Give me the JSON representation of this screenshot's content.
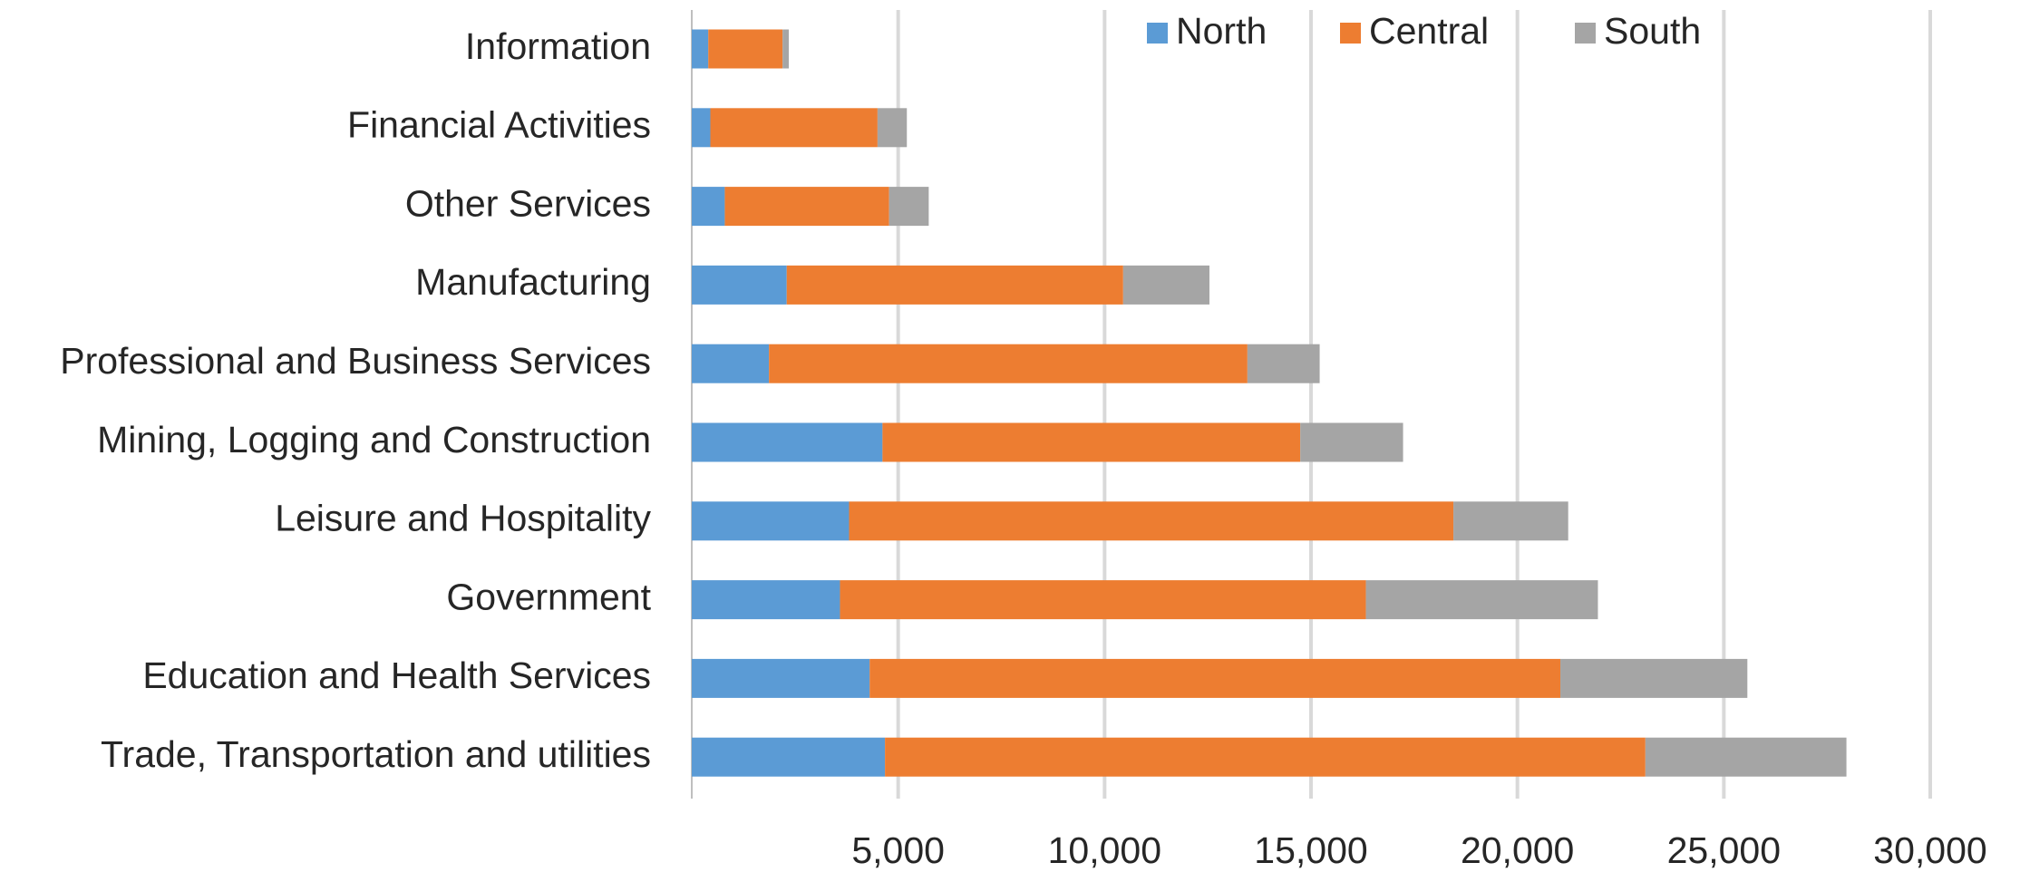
{
  "chart_data": {
    "type": "stacked-bar-horizontal",
    "categories": [
      "Information",
      "Financial Activities",
      "Other Services",
      "Manufacturing",
      "Professional and Business Services",
      "Mining, Logging and Construction",
      "Leisure and Hospitality",
      "Government",
      "Education and Health Services",
      "Trade, Transportation and utilities"
    ],
    "series": [
      {
        "name": "North",
        "color": "#5b9bd5",
        "values": [
          400,
          450,
          800,
          2300,
          1870,
          4620,
          3810,
          3590,
          4310,
          4680
        ]
      },
      {
        "name": "Central",
        "color": "#ed7d31",
        "values": [
          1800,
          4050,
          3980,
          8150,
          11590,
          10120,
          14640,
          12740,
          16730,
          18420
        ]
      },
      {
        "name": "South",
        "color": "#a5a5a5",
        "values": [
          150,
          710,
          960,
          2090,
          1750,
          2490,
          2780,
          5620,
          4530,
          4870
        ]
      }
    ],
    "xlim": [
      0,
      30000
    ],
    "xticks": [
      {
        "value": 5000,
        "label": "5,000"
      },
      {
        "value": 10000,
        "label": "10,000"
      },
      {
        "value": 15000,
        "label": "15,000"
      },
      {
        "value": 20000,
        "label": "20,000"
      },
      {
        "value": 25000,
        "label": "25,000"
      },
      {
        "value": 30000,
        "label": "30,000"
      }
    ],
    "grid": true,
    "legend": "top"
  }
}
